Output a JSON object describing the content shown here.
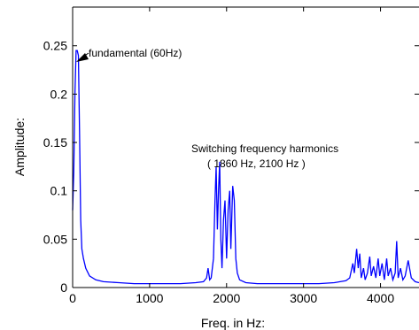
{
  "chart_data": {
    "type": "line",
    "title": "",
    "xlabel": "Freq. in Hz:",
    "ylabel": "Amplitude:",
    "xlim": [
      0,
      4500
    ],
    "ylim": [
      0,
      0.29
    ],
    "x_ticks": [
      "0",
      "1000",
      "2000",
      "3000",
      "4000"
    ],
    "y_ticks": [
      "0",
      "0.05",
      "0.1",
      "0.15",
      "0.2",
      "0.25"
    ],
    "grid": false,
    "line_color": "#0000ff",
    "annotations": {
      "fundamental": "fundamental (60Hz)",
      "switching_title": "Switching frequency harmonics",
      "switching_sub": "( 1860 Hz, 2100 Hz )"
    },
    "series": [
      {
        "points": [
          [
            0,
            0.08
          ],
          [
            15,
            0.12
          ],
          [
            30,
            0.2
          ],
          [
            45,
            0.245
          ],
          [
            60,
            0.245
          ],
          [
            75,
            0.24
          ],
          [
            90,
            0.16
          ],
          [
            105,
            0.07
          ],
          [
            120,
            0.04
          ],
          [
            140,
            0.03
          ],
          [
            170,
            0.02
          ],
          [
            220,
            0.012
          ],
          [
            300,
            0.008
          ],
          [
            400,
            0.006
          ],
          [
            600,
            0.005
          ],
          [
            800,
            0.004
          ],
          [
            1000,
            0.004
          ],
          [
            1200,
            0.004
          ],
          [
            1400,
            0.004
          ],
          [
            1600,
            0.005
          ],
          [
            1700,
            0.006
          ],
          [
            1740,
            0.01
          ],
          [
            1760,
            0.02
          ],
          [
            1780,
            0.008
          ],
          [
            1800,
            0.01
          ],
          [
            1830,
            0.03
          ],
          [
            1850,
            0.09
          ],
          [
            1865,
            0.125
          ],
          [
            1880,
            0.06
          ],
          [
            1895,
            0.1
          ],
          [
            1910,
            0.13
          ],
          [
            1925,
            0.05
          ],
          [
            1940,
            0.02
          ],
          [
            1960,
            0.07
          ],
          [
            1980,
            0.09
          ],
          [
            2000,
            0.03
          ],
          [
            2020,
            0.08
          ],
          [
            2040,
            0.1
          ],
          [
            2055,
            0.04
          ],
          [
            2080,
            0.105
          ],
          [
            2100,
            0.09
          ],
          [
            2120,
            0.03
          ],
          [
            2140,
            0.015
          ],
          [
            2170,
            0.008
          ],
          [
            2250,
            0.005
          ],
          [
            2400,
            0.004
          ],
          [
            2600,
            0.004
          ],
          [
            2800,
            0.004
          ],
          [
            3000,
            0.004
          ],
          [
            3200,
            0.004
          ],
          [
            3400,
            0.005
          ],
          [
            3550,
            0.007
          ],
          [
            3600,
            0.01
          ],
          [
            3640,
            0.025
          ],
          [
            3660,
            0.015
          ],
          [
            3690,
            0.04
          ],
          [
            3710,
            0.02
          ],
          [
            3730,
            0.035
          ],
          [
            3750,
            0.01
          ],
          [
            3780,
            0.02
          ],
          [
            3800,
            0.008
          ],
          [
            3830,
            0.015
          ],
          [
            3860,
            0.032
          ],
          [
            3880,
            0.012
          ],
          [
            3910,
            0.022
          ],
          [
            3940,
            0.01
          ],
          [
            3970,
            0.03
          ],
          [
            3990,
            0.012
          ],
          [
            4020,
            0.025
          ],
          [
            4050,
            0.008
          ],
          [
            4080,
            0.03
          ],
          [
            4100,
            0.012
          ],
          [
            4130,
            0.02
          ],
          [
            4160,
            0.008
          ],
          [
            4190,
            0.015
          ],
          [
            4210,
            0.048
          ],
          [
            4230,
            0.01
          ],
          [
            4260,
            0.02
          ],
          [
            4290,
            0.008
          ],
          [
            4320,
            0.012
          ],
          [
            4360,
            0.028
          ],
          [
            4400,
            0.01
          ],
          [
            4450,
            0.006
          ],
          [
            4500,
            0.005
          ]
        ]
      }
    ]
  }
}
